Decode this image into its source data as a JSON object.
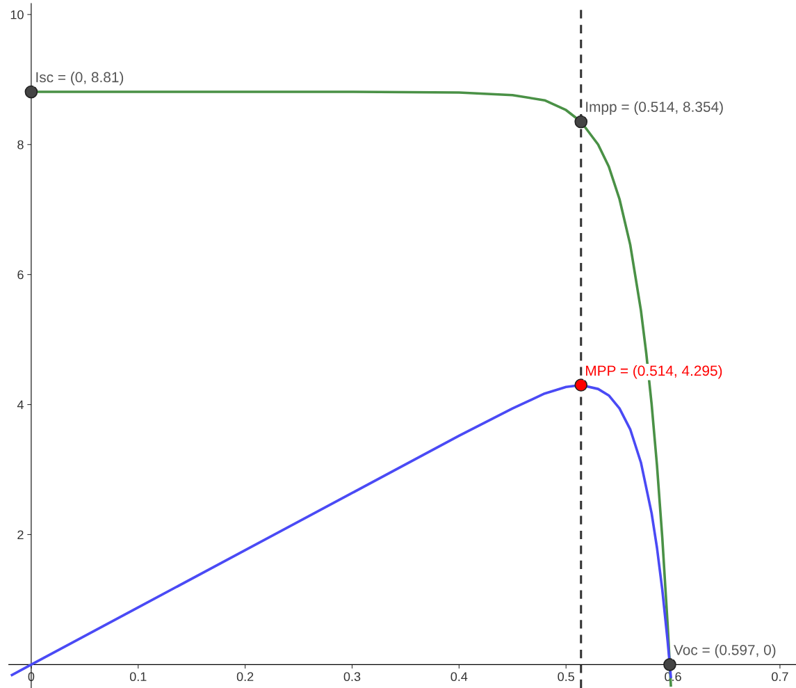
{
  "chart_data": {
    "type": "line",
    "xlim": [
      -0.021,
      0.715
    ],
    "ylim": [
      -0.36,
      10.17
    ],
    "xticks": [
      0,
      0.1,
      0.2,
      0.3,
      0.4,
      0.5,
      0.6,
      0.7
    ],
    "yticks": [
      2,
      4,
      6,
      8,
      10
    ],
    "grid": false,
    "legend": false,
    "marker": "none",
    "line_style": "solid",
    "series": [
      {
        "color": "#4a9146",
        "x": [
          0,
          0.1,
          0.2,
          0.3,
          0.4,
          0.45,
          0.48,
          0.5,
          0.514,
          0.53,
          0.54,
          0.55,
          0.56,
          0.57,
          0.575,
          0.58,
          0.585,
          0.59,
          0.595,
          0.597,
          0.598
        ],
        "values": [
          8.81,
          8.81,
          8.81,
          8.81,
          8.8,
          8.76,
          8.68,
          8.53,
          8.35,
          8.0,
          7.66,
          7.16,
          6.46,
          5.45,
          4.79,
          4.01,
          3.07,
          1.95,
          0.61,
          0,
          -0.32
        ]
      },
      {
        "color": "#4a4af5",
        "x": [
          -0.018,
          0,
          0.1,
          0.2,
          0.3,
          0.4,
          0.45,
          0.48,
          0.5,
          0.514,
          0.53,
          0.54,
          0.55,
          0.56,
          0.57,
          0.58,
          0.585,
          0.59,
          0.595,
          0.597,
          0.598
        ],
        "values": [
          -0.16,
          0,
          0.88,
          1.76,
          2.64,
          3.52,
          3.94,
          4.17,
          4.27,
          4.3,
          4.24,
          4.14,
          3.94,
          3.62,
          3.11,
          2.33,
          1.8,
          1.15,
          0.36,
          0,
          -0.19
        ]
      },
      {
        "type": "scatter",
        "marker": "circle",
        "x": [
          0,
          0.514,
          0.514,
          0.597
        ],
        "values": [
          8.81,
          8.35,
          4.3,
          0
        ],
        "colors": [
          "#444444",
          "#444444",
          "#ff0000",
          "#444444"
        ]
      }
    ],
    "ref_lines": [
      {
        "axis": "x",
        "value": 0.514,
        "color": "#333333",
        "line_style": "dashed"
      }
    ],
    "annotations": [
      {
        "text": "Isc = (0, 8.81)",
        "x": 0,
        "y": 8.81
      },
      {
        "text": "Impp = (0.514, 8.354)",
        "x": 0.514,
        "y": 8.354
      },
      {
        "text": "MPP = (0.514, 4.295)",
        "x": 0.514,
        "y": 4.295
      },
      {
        "text": "Voc = (0.597, 0)",
        "x": 0.597,
        "y": 0
      }
    ]
  }
}
